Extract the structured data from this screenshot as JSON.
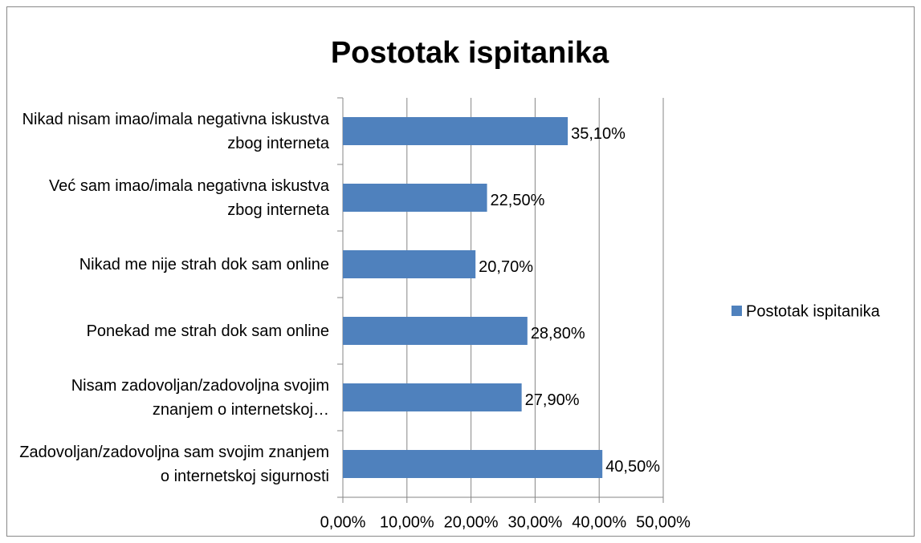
{
  "chart_data": {
    "type": "bar",
    "orientation": "horizontal",
    "title": "Postotak ispitanika",
    "categories": [
      "Nikad nisam imao/imala negativna iskustva zbog interneta",
      "Već sam imao/imala negativna iskustva zbog interneta",
      "Nikad me nije strah dok sam online",
      "Ponekad me strah dok sam online",
      "Nisam zadovoljan/zadovoljna svojim znanjem o internetskoj…",
      "Zadovoljan/zadovoljna sam svojim znanjem o internetskoj sigurnosti"
    ],
    "series": [
      {
        "name": "Postotak ispitanika",
        "color": "#4f81bd",
        "values": [
          35.1,
          22.5,
          20.7,
          28.8,
          27.9,
          40.5
        ],
        "value_labels": [
          "35,10%",
          "22,50%",
          "20,70%",
          "28,80%",
          "27,90%",
          "40,50%"
        ]
      }
    ],
    "xlim": [
      0,
      50
    ],
    "xticks": [
      {
        "value": 0,
        "label": "0,00%"
      },
      {
        "value": 10,
        "label": "10,00%"
      },
      {
        "value": 20,
        "label": "20,00%"
      },
      {
        "value": 30,
        "label": "30,00%"
      },
      {
        "value": 40,
        "label": "40,00%"
      },
      {
        "value": 50,
        "label": "50,00%"
      }
    ],
    "grid": true,
    "legend": "right"
  }
}
